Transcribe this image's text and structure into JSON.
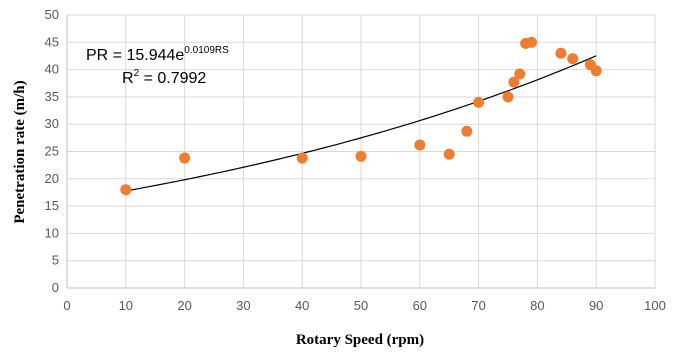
{
  "chart_data": {
    "type": "scatter",
    "xlabel": "Rotary Speed (rpm)",
    "ylabel": "Penetration rate (m/h)",
    "xlim": [
      0,
      100
    ],
    "ylim": [
      0,
      50
    ],
    "xticks": [
      "0",
      "10",
      "20",
      "30",
      "40",
      "50",
      "60",
      "70",
      "80",
      "90",
      "100"
    ],
    "yticks": [
      "0",
      "5",
      "10",
      "15",
      "20",
      "25",
      "30",
      "35",
      "40",
      "45",
      "50"
    ],
    "grid": true,
    "legend": "none",
    "marker_color": "#ED7D31",
    "trendline_color": "#000000",
    "series": [
      {
        "points": [
          [
            10,
            18.0
          ],
          [
            20,
            23.8
          ],
          [
            40,
            23.8
          ],
          [
            50,
            24.1
          ],
          [
            60,
            26.2
          ],
          [
            65,
            24.5
          ],
          [
            68,
            28.7
          ],
          [
            70,
            34.0
          ],
          [
            75,
            35.0
          ],
          [
            76,
            37.7
          ],
          [
            77,
            39.2
          ],
          [
            78,
            44.8
          ],
          [
            79,
            45.0
          ],
          [
            84,
            43.0
          ],
          [
            86,
            42.0
          ],
          [
            89,
            40.9
          ],
          [
            90,
            39.8
          ]
        ]
      }
    ],
    "trendline": {
      "type": "exponential",
      "a": 15.944,
      "b": 0.0109,
      "x_range": [
        10,
        90
      ]
    },
    "annotation": {
      "eq_prefix": "PR = 15.944e",
      "eq_exponent": "0.0109RS",
      "r2_prefix": "R",
      "r2_sup": "2",
      "r2_suffix": " = 0.7992"
    }
  }
}
